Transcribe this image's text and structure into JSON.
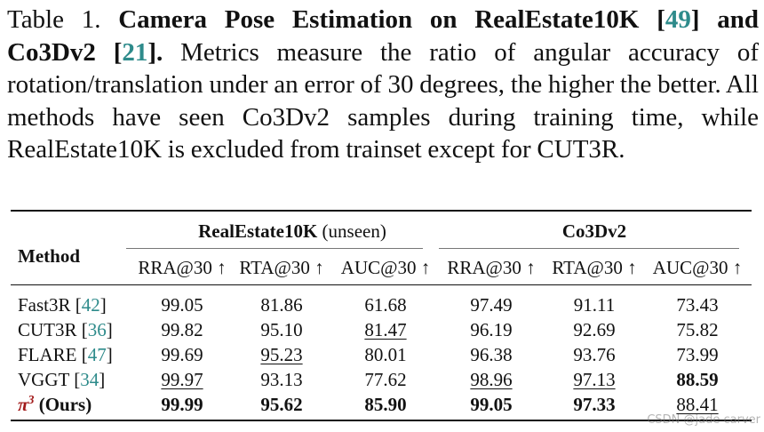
{
  "caption": {
    "label": "Table 1.",
    "title_part1": "Camera Pose Estimation on RealEstate10K [",
    "cite_a": "49",
    "title_part2": "] and Co3Dv2 [",
    "cite_b": "21",
    "title_part3": "].",
    "body": "Metrics measure the ratio of angular accuracy of rotation/translation under an error of 30 degrees, the higher the better. All methods have seen Co3Dv2 samples during training time, while RealEstate10K is excluded from trainset except for CUT3R."
  },
  "table": {
    "method_header": "Method",
    "groups": [
      {
        "name": "RealEstate10K",
        "suffix": " (unseen)"
      },
      {
        "name": "Co3Dv2",
        "suffix": ""
      }
    ],
    "columns": [
      "RRA@30 ↑",
      "RTA@30 ↑",
      "AUC@30 ↑",
      "RRA@30 ↑",
      "RTA@30 ↑",
      "AUC@30 ↑"
    ],
    "rows": [
      {
        "name": "Fast3R [",
        "cite": "42",
        "close": "]",
        "cells": [
          {
            "v": "99.05"
          },
          {
            "v": "81.86"
          },
          {
            "v": "61.68"
          },
          {
            "v": "97.49"
          },
          {
            "v": "91.11"
          },
          {
            "v": "73.43"
          }
        ]
      },
      {
        "name": "CUT3R [",
        "cite": "36",
        "close": "]",
        "cells": [
          {
            "v": "99.82"
          },
          {
            "v": "95.10"
          },
          {
            "v": "81.47",
            "u": true
          },
          {
            "v": "96.19"
          },
          {
            "v": "92.69"
          },
          {
            "v": "75.82"
          }
        ]
      },
      {
        "name": "FLARE [",
        "cite": "47",
        "close": "]",
        "cells": [
          {
            "v": "99.69"
          },
          {
            "v": "95.23",
            "u": true
          },
          {
            "v": "80.01"
          },
          {
            "v": "96.38"
          },
          {
            "v": "93.76"
          },
          {
            "v": "73.99"
          }
        ]
      },
      {
        "name": "VGGT [",
        "cite": "34",
        "close": "]",
        "cells": [
          {
            "v": "99.97",
            "u": true
          },
          {
            "v": "93.13"
          },
          {
            "v": "77.62"
          },
          {
            "v": "98.96",
            "u": true
          },
          {
            "v": "97.13",
            "u": true
          },
          {
            "v": "88.59",
            "b": true
          }
        ]
      },
      {
        "ours": true,
        "symbol": "π",
        "sup": "3",
        "name": " (Ours)",
        "cells": [
          {
            "v": "99.99",
            "b": true
          },
          {
            "v": "95.62",
            "b": true
          },
          {
            "v": "85.90",
            "b": true
          },
          {
            "v": "99.05",
            "b": true
          },
          {
            "v": "97.33",
            "b": true
          },
          {
            "v": "88.41",
            "u": true
          }
        ]
      }
    ]
  },
  "watermark": "CSDN @jade carver"
}
